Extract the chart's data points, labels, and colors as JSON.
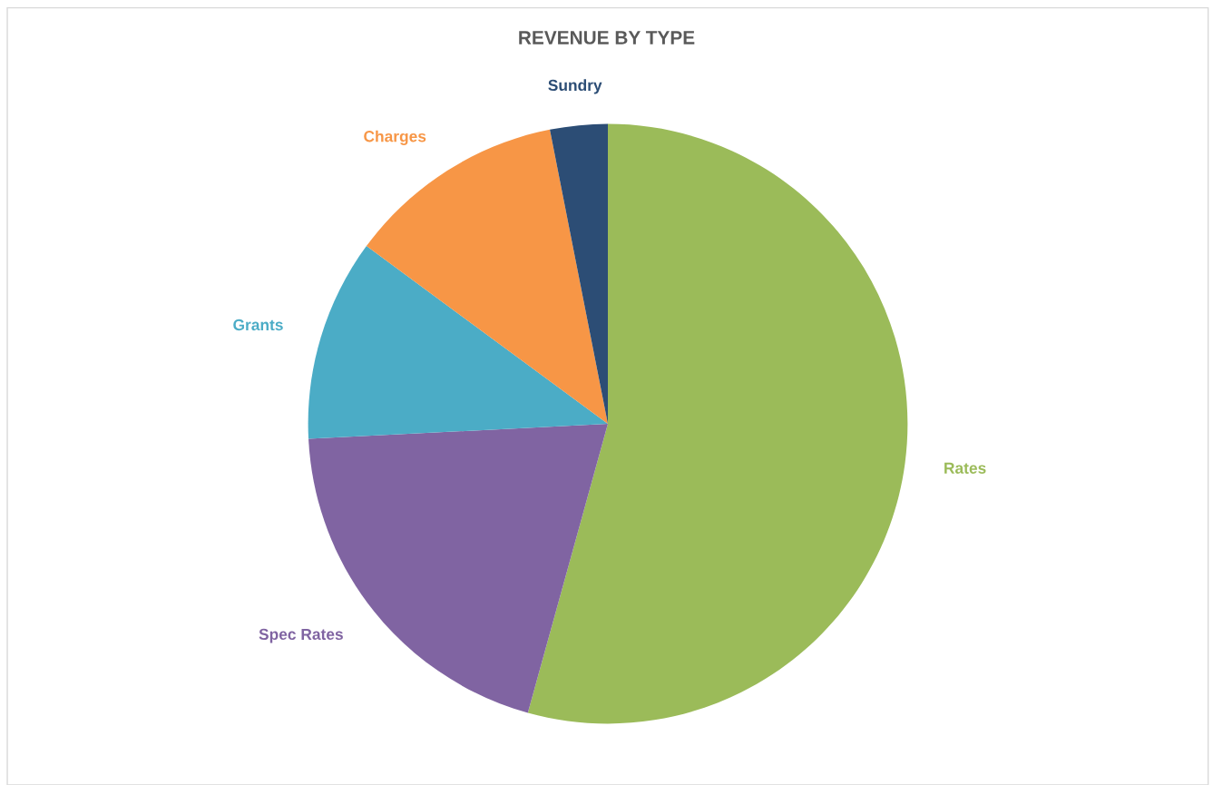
{
  "chart_data": {
    "type": "pie",
    "title": "REVENUE BY TYPE",
    "categories": [
      "Rates",
      "Spec Rates",
      "Grants",
      "Charges",
      "Sundry"
    ],
    "values": [
      54.3,
      19.9,
      10.9,
      11.8,
      3.1
    ],
    "colors": [
      "#9bbb59",
      "#8064a2",
      "#4bacc6",
      "#f79646",
      "#2c4d75"
    ],
    "legend": false
  }
}
